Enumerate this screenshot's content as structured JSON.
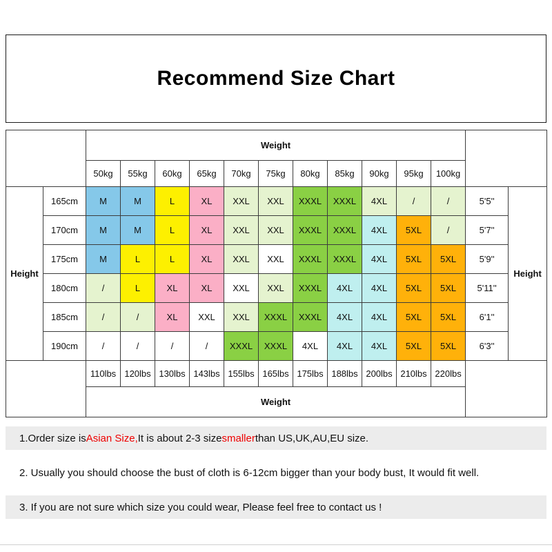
{
  "title": "Recommend Size Chart",
  "colors": {
    "blue": "#85C8E9",
    "yellow": "#FDF000",
    "pink": "#FBAFC6",
    "pale": "#E5F3CF",
    "green": "#8AD044",
    "cyan": "#BFEFEF",
    "orange": "#FFB10A",
    "white": "#FFFFFF"
  },
  "table": {
    "weight_label_top": "Weight",
    "weight_label_bottom": "Weight",
    "height_label_left": "Height",
    "height_label_right": "Height"
  },
  "chart_data": {
    "type": "table",
    "title": "Recommend Size Chart",
    "weight_columns_kg": [
      "50kg",
      "55kg",
      "60kg",
      "65kg",
      "70kg",
      "75kg",
      "80kg",
      "85kg",
      "90kg",
      "95kg",
      "100kg"
    ],
    "weight_columns_lbs": [
      "110lbs",
      "120lbs",
      "130lbs",
      "143lbs",
      "155lbs",
      "165lbs",
      "175lbs",
      "188lbs",
      "200lbs",
      "210lbs",
      "220lbs"
    ],
    "rows": [
      {
        "height_cm": "165cm",
        "height_ft": "5'5''",
        "cells": [
          {
            "size": "M",
            "fill": "blue"
          },
          {
            "size": "M",
            "fill": "blue"
          },
          {
            "size": "L",
            "fill": "yellow"
          },
          {
            "size": "XL",
            "fill": "pink"
          },
          {
            "size": "XXL",
            "fill": "pale"
          },
          {
            "size": "XXL",
            "fill": "pale"
          },
          {
            "size": "XXXL",
            "fill": "green"
          },
          {
            "size": "XXXL",
            "fill": "green"
          },
          {
            "size": "4XL",
            "fill": "pale"
          },
          {
            "size": "/",
            "fill": "pale"
          },
          {
            "size": "/",
            "fill": "pale"
          }
        ]
      },
      {
        "height_cm": "170cm",
        "height_ft": "5'7''",
        "cells": [
          {
            "size": "M",
            "fill": "blue"
          },
          {
            "size": "M",
            "fill": "blue"
          },
          {
            "size": "L",
            "fill": "yellow"
          },
          {
            "size": "XL",
            "fill": "pink"
          },
          {
            "size": "XXL",
            "fill": "pale"
          },
          {
            "size": "XXL",
            "fill": "pale"
          },
          {
            "size": "XXXL",
            "fill": "green"
          },
          {
            "size": "XXXL",
            "fill": "green"
          },
          {
            "size": "4XL",
            "fill": "cyan"
          },
          {
            "size": "5XL",
            "fill": "orange"
          },
          {
            "size": "/",
            "fill": "pale"
          }
        ]
      },
      {
        "height_cm": "175cm",
        "height_ft": "5'9''",
        "cells": [
          {
            "size": "M",
            "fill": "blue"
          },
          {
            "size": "L",
            "fill": "yellow"
          },
          {
            "size": "L",
            "fill": "yellow"
          },
          {
            "size": "XL",
            "fill": "pink"
          },
          {
            "size": "XXL",
            "fill": "pale"
          },
          {
            "size": "XXL",
            "fill": "white"
          },
          {
            "size": "XXXL",
            "fill": "green"
          },
          {
            "size": "XXXL",
            "fill": "green"
          },
          {
            "size": "4XL",
            "fill": "cyan"
          },
          {
            "size": "5XL",
            "fill": "orange"
          },
          {
            "size": "5XL",
            "fill": "orange"
          }
        ]
      },
      {
        "height_cm": "180cm",
        "height_ft": "5'11''",
        "cells": [
          {
            "size": "/",
            "fill": "pale"
          },
          {
            "size": "L",
            "fill": "yellow"
          },
          {
            "size": "XL",
            "fill": "pink"
          },
          {
            "size": "XL",
            "fill": "pink"
          },
          {
            "size": "XXL",
            "fill": "white"
          },
          {
            "size": "XXL",
            "fill": "pale"
          },
          {
            "size": "XXXL",
            "fill": "green"
          },
          {
            "size": "4XL",
            "fill": "cyan"
          },
          {
            "size": "4XL",
            "fill": "cyan"
          },
          {
            "size": "5XL",
            "fill": "orange"
          },
          {
            "size": "5XL",
            "fill": "orange"
          }
        ]
      },
      {
        "height_cm": "185cm",
        "height_ft": "6'1''",
        "cells": [
          {
            "size": "/",
            "fill": "pale"
          },
          {
            "size": "/",
            "fill": "pale"
          },
          {
            "size": "XL",
            "fill": "pink"
          },
          {
            "size": "XXL",
            "fill": "white"
          },
          {
            "size": "XXL",
            "fill": "pale"
          },
          {
            "size": "XXXL",
            "fill": "green"
          },
          {
            "size": "XXXL",
            "fill": "green"
          },
          {
            "size": "4XL",
            "fill": "cyan"
          },
          {
            "size": "4XL",
            "fill": "cyan"
          },
          {
            "size": "5XL",
            "fill": "orange"
          },
          {
            "size": "5XL",
            "fill": "orange"
          }
        ]
      },
      {
        "height_cm": "190cm",
        "height_ft": "6'3''",
        "cells": [
          {
            "size": "/",
            "fill": "white"
          },
          {
            "size": "/",
            "fill": "white"
          },
          {
            "size": "/",
            "fill": "white"
          },
          {
            "size": "/",
            "fill": "white"
          },
          {
            "size": "XXXL",
            "fill": "green"
          },
          {
            "size": "XXXL",
            "fill": "green"
          },
          {
            "size": "4XL",
            "fill": "white"
          },
          {
            "size": "4XL",
            "fill": "cyan"
          },
          {
            "size": "4XL",
            "fill": "cyan"
          },
          {
            "size": "5XL",
            "fill": "orange"
          },
          {
            "size": "5XL",
            "fill": "orange"
          }
        ]
      }
    ]
  },
  "notes": [
    {
      "shaded": true,
      "segments": [
        {
          "text": "1.Order size is ",
          "red": false
        },
        {
          "text": "Asian Size,",
          "red": true
        },
        {
          "text": " It is about 2-3 size ",
          "red": false
        },
        {
          "text": "smaller",
          "red": true
        },
        {
          "text": " than US,UK,AU,EU size.",
          "red": false
        }
      ]
    },
    {
      "shaded": false,
      "segments": [
        {
          "text": "2. Usually you should choose the bust of cloth is 6-12cm bigger than your body bust, It would fit well.",
          "red": false
        }
      ]
    },
    {
      "shaded": true,
      "segments": [
        {
          "text": "3. If you are not sure which size you could wear, Please feel free to contact us !",
          "red": false
        }
      ]
    }
  ]
}
